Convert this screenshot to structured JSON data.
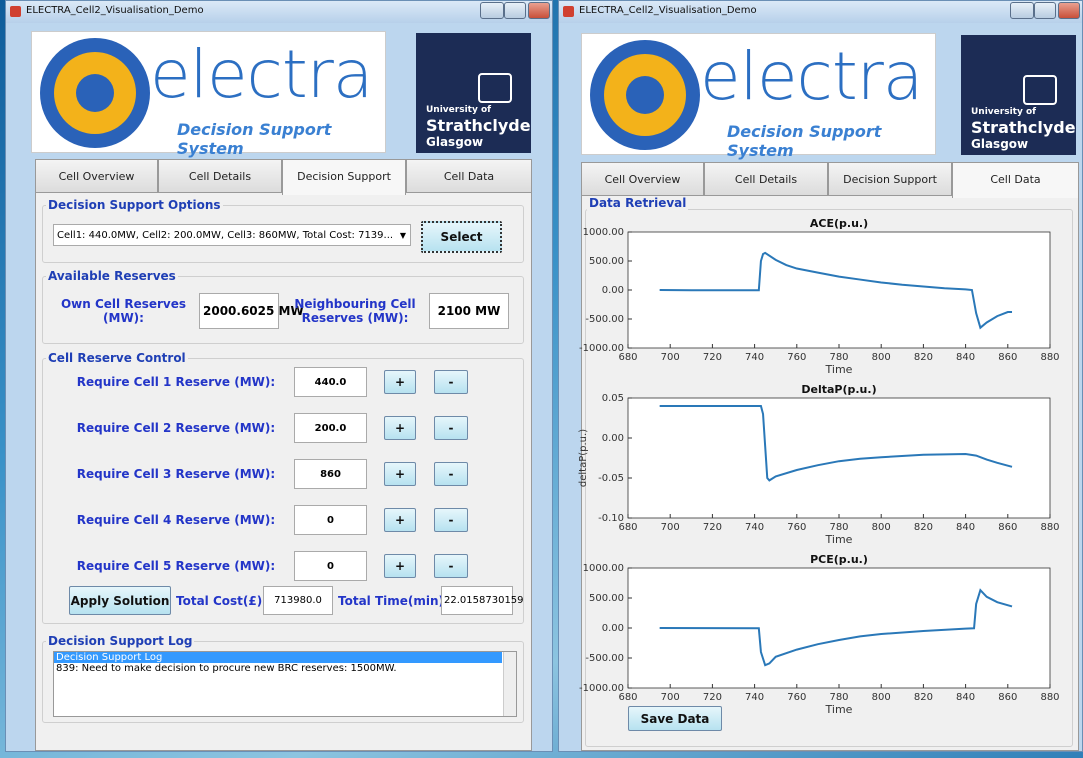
{
  "window_title": "ELECTRA_Cell2_Visualisation_Demo",
  "logo": {
    "name": "electra",
    "tagline": "Decision Support System",
    "uni_prefix": "University of",
    "uni_name": "Strathclyde",
    "uni_city": "Glasgow"
  },
  "tabs": [
    "Cell Overview",
    "Cell Details",
    "Decision Support",
    "Cell Data"
  ],
  "decision_support": {
    "title": "Decision Support Options",
    "dropdown": "Cell1: 440.0MW, Cell2: 200.0MW, Cell3: 860MW, Total Cost: 7139...",
    "button": "Select"
  },
  "reserves": {
    "title": "Available Reserves",
    "own_label": "Own Cell Reserves (MW):",
    "own_value": "2000.6025 MW",
    "neighbour_label": "Neighbouring Cell Reserves (MW):",
    "neighbour_value": "2100 MW"
  },
  "reserve_control": {
    "title": "Cell Reserve Control",
    "rows": [
      {
        "label": "Require Cell 1 Reserve (MW):",
        "value": "440.0"
      },
      {
        "label": "Require Cell 2 Reserve (MW):",
        "value": "200.0"
      },
      {
        "label": "Require Cell 3 Reserve (MW):",
        "value": "860"
      },
      {
        "label": "Require Cell 4 Reserve (MW):",
        "value": "0"
      },
      {
        "label": "Require Cell 5 Reserve (MW):",
        "value": "0"
      }
    ],
    "plus": "+",
    "minus": "-",
    "apply": "Apply Solution",
    "cost_label": "Total Cost(£):",
    "cost": "713980.0",
    "time_label": "Total Time(min):",
    "time": "22.0158730159"
  },
  "log": {
    "title": "Decision Support Log",
    "lines": [
      "Decision Support Log",
      "839: Need to make decision to procure new BRC reserves: 1500MW."
    ]
  },
  "data_retrieval": {
    "title": "Data Retrieval",
    "save_button": "Save Data"
  },
  "chart_data": [
    {
      "type": "line",
      "title": "ACE(p.u.)",
      "x_label": "Time",
      "color": "#2a78b8",
      "x": [
        695,
        710,
        725,
        742,
        743,
        744,
        745,
        750,
        755,
        760,
        770,
        780,
        790,
        800,
        810,
        820,
        830,
        840,
        843,
        845,
        847,
        850,
        855,
        860,
        862
      ],
      "values": [
        0,
        -5,
        -5,
        -5,
        500,
        620,
        640,
        520,
        430,
        370,
        300,
        230,
        180,
        130,
        90,
        60,
        30,
        10,
        0,
        -400,
        -650,
        -560,
        -450,
        -380,
        -380
      ],
      "xlim": [
        680,
        880
      ],
      "xticks": [
        680,
        700,
        720,
        740,
        760,
        780,
        800,
        820,
        840,
        860,
        880
      ],
      "ylim": [
        -1000,
        1000
      ],
      "yticks": [
        {
          "value": -1000,
          "label": "-1000.00"
        },
        {
          "value": -500,
          "label": "-500.00"
        },
        {
          "value": 0,
          "label": "0.00"
        },
        {
          "value": 500,
          "label": "500.00"
        },
        {
          "value": 1000,
          "label": "1000.00"
        }
      ]
    },
    {
      "type": "line",
      "title": "DeltaP(p.u.)",
      "x_label": "Time",
      "y_label": "deltaP(p.u.)",
      "color": "#2a78b8",
      "x": [
        695,
        720,
        743,
        744,
        745,
        746,
        747,
        750,
        760,
        770,
        780,
        790,
        800,
        820,
        840,
        845,
        850,
        855,
        862
      ],
      "values": [
        0.04,
        0.04,
        0.04,
        0.03,
        -0.01,
        -0.05,
        -0.053,
        -0.048,
        -0.04,
        -0.034,
        -0.029,
        -0.026,
        -0.024,
        -0.021,
        -0.02,
        -0.022,
        -0.027,
        -0.031,
        -0.036
      ],
      "xlim": [
        680,
        880
      ],
      "xticks": [
        680,
        700,
        720,
        740,
        760,
        780,
        800,
        820,
        840,
        860,
        880
      ],
      "ylim": [
        -0.1,
        0.05
      ],
      "yticks": [
        {
          "value": -0.1,
          "label": "-0.10"
        },
        {
          "value": -0.05,
          "label": "-0.05"
        },
        {
          "value": 0,
          "label": "0.00"
        },
        {
          "value": 0.05,
          "label": "0.05"
        }
      ]
    },
    {
      "type": "line",
      "title": "PCE(p.u.)",
      "x_label": "Time",
      "color": "#2a78b8",
      "x": [
        695,
        742,
        743,
        745,
        747,
        750,
        760,
        770,
        780,
        790,
        800,
        820,
        840,
        844,
        845,
        847,
        850,
        855,
        862
      ],
      "values": [
        0,
        -5,
        -400,
        -620,
        -590,
        -480,
        -360,
        -270,
        -200,
        -140,
        -100,
        -50,
        -10,
        -5,
        400,
        630,
        520,
        430,
        360
      ],
      "xlim": [
        680,
        880
      ],
      "xticks": [
        680,
        700,
        720,
        740,
        760,
        780,
        800,
        820,
        840,
        860,
        880
      ],
      "ylim": [
        -1000,
        1000
      ],
      "yticks": [
        {
          "value": -1000,
          "label": "-1000.00"
        },
        {
          "value": -500,
          "label": "-500.00"
        },
        {
          "value": 0,
          "label": "0.00"
        },
        {
          "value": 500,
          "label": "500.00"
        },
        {
          "value": 1000,
          "label": "1000.00"
        }
      ]
    }
  ]
}
